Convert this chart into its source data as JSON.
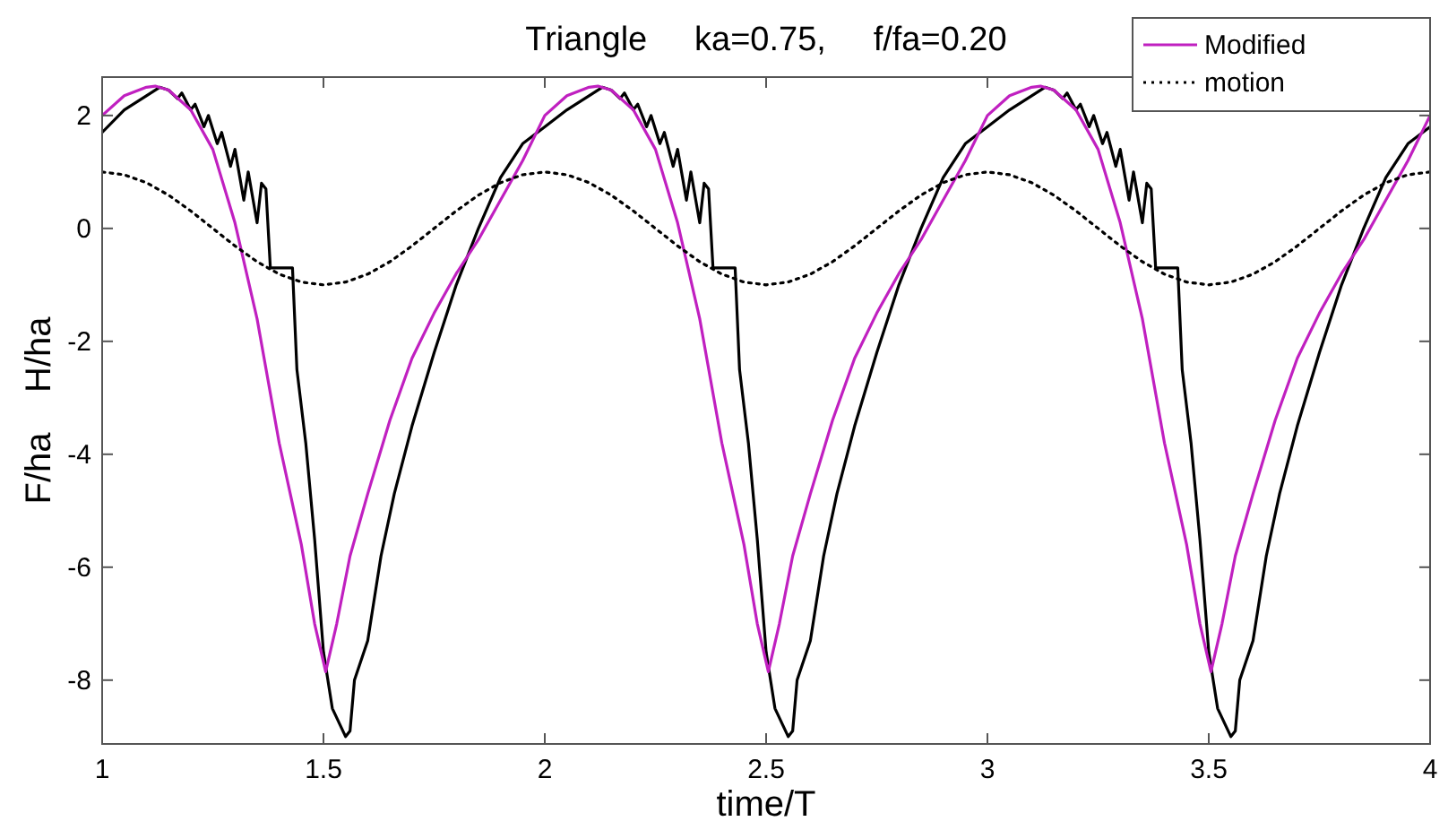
{
  "chart_data": {
    "type": "line",
    "title": "Triangle     ka=0.75,     f/fa=0.20",
    "xlabel": "time/T",
    "ylabel": "F/ha    H/ha",
    "xlim": [
      1,
      4
    ],
    "ylim": [
      -9.13,
      2.68
    ],
    "xticks": [
      1,
      1.5,
      2,
      2.5,
      3,
      3.5,
      4
    ],
    "yticks": [
      -8,
      -6,
      -4,
      -2,
      0,
      2
    ],
    "grid": false,
    "legend": "top right",
    "series": [
      {
        "color": "#000000",
        "line_style": "solid",
        "x": [
          1,
          1.05,
          1.1,
          1.13,
          1.15,
          1.17,
          1.18,
          1.2,
          1.21,
          1.23,
          1.24,
          1.26,
          1.27,
          1.29,
          1.3,
          1.32,
          1.33,
          1.35,
          1.36,
          1.37,
          1.38,
          1.43,
          1.44,
          1.46,
          1.48,
          1.5,
          1.52,
          1.55,
          1.56,
          1.57,
          1.6,
          1.63,
          1.66,
          1.7,
          1.75,
          1.8,
          1.85,
          1.9,
          1.95,
          2,
          2.05,
          2.1,
          2.13,
          2.15,
          2.17,
          2.18,
          2.2,
          2.21,
          2.23,
          2.24,
          2.26,
          2.27,
          2.29,
          2.3,
          2.32,
          2.33,
          2.35,
          2.36,
          2.37,
          2.38,
          2.43,
          2.44,
          2.46,
          2.48,
          2.5,
          2.52,
          2.55,
          2.56,
          2.57,
          2.6,
          2.63,
          2.66,
          2.7,
          2.75,
          2.8,
          2.85,
          2.9,
          2.95,
          3,
          3.05,
          3.1,
          3.13,
          3.15,
          3.17,
          3.18,
          3.2,
          3.21,
          3.23,
          3.24,
          3.26,
          3.27,
          3.29,
          3.3,
          3.32,
          3.33,
          3.35,
          3.36,
          3.37,
          3.38,
          3.43,
          3.44,
          3.46,
          3.48,
          3.5,
          3.52,
          3.55,
          3.56,
          3.57,
          3.6,
          3.63,
          3.66,
          3.7,
          3.75,
          3.8,
          3.85,
          3.9,
          3.95,
          4
        ],
        "values": [
          1.7,
          2.1,
          2.35,
          2.5,
          2.45,
          2.3,
          2.4,
          2.1,
          2.2,
          1.8,
          2.0,
          1.5,
          1.7,
          1.1,
          1.4,
          0.5,
          1.0,
          0.1,
          0.8,
          0.7,
          -0.7,
          -0.7,
          -2.5,
          -3.8,
          -5.5,
          -7.5,
          -8.5,
          -9.0,
          -8.9,
          -8.0,
          -7.3,
          -5.8,
          -4.7,
          -3.5,
          -2.2,
          -1.0,
          0.0,
          0.9,
          1.5,
          1.8,
          2.1,
          2.35,
          2.5,
          2.45,
          2.3,
          2.4,
          2.1,
          2.2,
          1.8,
          2.0,
          1.5,
          1.7,
          1.1,
          1.4,
          0.5,
          1.0,
          0.1,
          0.8,
          0.7,
          -0.7,
          -0.7,
          -2.5,
          -3.8,
          -5.5,
          -7.5,
          -8.5,
          -9.0,
          -8.9,
          -8.0,
          -7.3,
          -5.8,
          -4.7,
          -3.5,
          -2.2,
          -1.0,
          0.0,
          0.9,
          1.5,
          1.8,
          2.1,
          2.35,
          2.5,
          2.45,
          2.3,
          2.4,
          2.1,
          2.2,
          1.8,
          2.0,
          1.5,
          1.7,
          1.1,
          1.4,
          0.5,
          1.0,
          0.1,
          0.8,
          0.7,
          -0.7,
          -0.7,
          -2.5,
          -3.8,
          -5.5,
          -7.5,
          -8.5,
          -9.0,
          -8.9,
          -8.0,
          -7.3,
          -5.8,
          -4.7,
          -3.5,
          -2.2,
          -1.0,
          0.0,
          0.9,
          1.5,
          1.8
        ]
      },
      {
        "name": "Modified",
        "color": "#c020c0",
        "line_style": "solid",
        "x": [
          1,
          1.05,
          1.1,
          1.12,
          1.15,
          1.2,
          1.25,
          1.3,
          1.35,
          1.4,
          1.45,
          1.48,
          1.505,
          1.53,
          1.56,
          1.6,
          1.65,
          1.7,
          1.75,
          1.8,
          1.85,
          1.9,
          1.95,
          2,
          2.05,
          2.1,
          2.12,
          2.15,
          2.2,
          2.25,
          2.3,
          2.35,
          2.4,
          2.45,
          2.48,
          2.505,
          2.53,
          2.56,
          2.6,
          2.65,
          2.7,
          2.75,
          2.8,
          2.85,
          2.9,
          2.95,
          3,
          3.05,
          3.1,
          3.12,
          3.15,
          3.2,
          3.25,
          3.3,
          3.35,
          3.4,
          3.45,
          3.48,
          3.505,
          3.53,
          3.56,
          3.6,
          3.65,
          3.7,
          3.75,
          3.8,
          3.85,
          3.9,
          3.95,
          4
        ],
        "values": [
          2.0,
          2.35,
          2.5,
          2.52,
          2.45,
          2.1,
          1.4,
          0.1,
          -1.6,
          -3.8,
          -5.6,
          -7.0,
          -7.85,
          -7.0,
          -5.8,
          -4.7,
          -3.4,
          -2.3,
          -1.5,
          -0.8,
          -0.2,
          0.5,
          1.2,
          2.0,
          2.35,
          2.5,
          2.52,
          2.45,
          2.1,
          1.4,
          0.1,
          -1.6,
          -3.8,
          -5.6,
          -7.0,
          -7.85,
          -7.0,
          -5.8,
          -4.7,
          -3.4,
          -2.3,
          -1.5,
          -0.8,
          -0.2,
          0.5,
          1.2,
          2.0,
          2.35,
          2.5,
          2.52,
          2.45,
          2.1,
          1.4,
          0.1,
          -1.6,
          -3.8,
          -5.6,
          -7.0,
          -7.85,
          -7.0,
          -5.8,
          -4.7,
          -3.4,
          -2.3,
          -1.5,
          -0.8,
          -0.2,
          0.5,
          1.2,
          2.0
        ]
      },
      {
        "name": "motion",
        "color": "#000000",
        "line_style": "dotted",
        "x": [
          1,
          1.05,
          1.1,
          1.15,
          1.2,
          1.25,
          1.3,
          1.35,
          1.4,
          1.45,
          1.5,
          1.55,
          1.6,
          1.65,
          1.7,
          1.75,
          1.8,
          1.85,
          1.9,
          1.95,
          2,
          2.05,
          2.1,
          2.15,
          2.2,
          2.25,
          2.3,
          2.35,
          2.4,
          2.45,
          2.5,
          2.55,
          2.6,
          2.65,
          2.7,
          2.75,
          2.8,
          2.85,
          2.9,
          2.95,
          3,
          3.05,
          3.1,
          3.15,
          3.2,
          3.25,
          3.3,
          3.35,
          3.4,
          3.45,
          3.5,
          3.55,
          3.6,
          3.65,
          3.7,
          3.75,
          3.8,
          3.85,
          3.9,
          3.95,
          4
        ],
        "values": [
          1,
          0.95,
          0.81,
          0.59,
          0.31,
          0,
          -0.31,
          -0.59,
          -0.81,
          -0.95,
          -1,
          -0.95,
          -0.81,
          -0.59,
          -0.31,
          0,
          0.31,
          0.59,
          0.81,
          0.95,
          1,
          0.95,
          0.81,
          0.59,
          0.31,
          0,
          -0.31,
          -0.59,
          -0.81,
          -0.95,
          -1,
          -0.95,
          -0.81,
          -0.59,
          -0.31,
          0,
          0.31,
          0.59,
          0.81,
          0.95,
          1,
          0.95,
          0.81,
          0.59,
          0.31,
          0,
          -0.31,
          -0.59,
          -0.81,
          -0.95,
          -1,
          -0.95,
          -0.81,
          -0.59,
          -0.31,
          0,
          0.31,
          0.59,
          0.81,
          0.95,
          1
        ]
      }
    ]
  }
}
